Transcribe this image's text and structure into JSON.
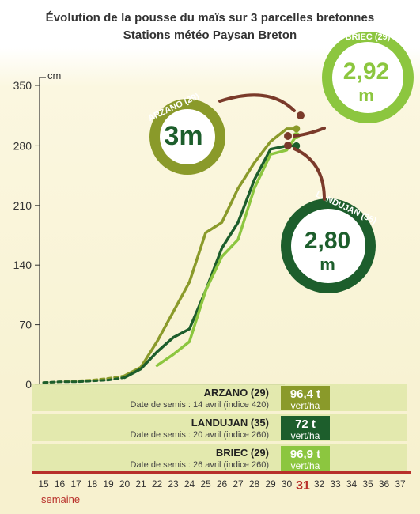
{
  "title": "Évolution de la pousse du maïs sur 3 parcelles bretonnes",
  "subtitle": "Stations météo Paysan Breton",
  "chart_data": {
    "type": "line",
    "title": "Évolution de la pousse du maïs sur 3 parcelles bretonnes",
    "subtitle": "Stations météo Paysan Breton",
    "xlabel": "semaine",
    "ylabel": "cm",
    "ylim": [
      0,
      350
    ],
    "y_ticks": [
      "0",
      "70",
      "140",
      "210",
      "280",
      "350"
    ],
    "x_ticks": [
      "15",
      "16",
      "17",
      "18",
      "19",
      "20",
      "21",
      "22",
      "23",
      "24",
      "25",
      "26",
      "27",
      "28",
      "29",
      "30",
      "31",
      "32",
      "33",
      "34",
      "35",
      "36",
      "37"
    ],
    "highlight_week": "31",
    "grid": false,
    "series": [
      {
        "name": "ARZANO (29)",
        "color": "#8a9a2a",
        "x": [
          15,
          16,
          17,
          18,
          19,
          20,
          21,
          22,
          23,
          24,
          25,
          26,
          27,
          28,
          29,
          30,
          30.6
        ],
        "y": [
          2,
          3,
          4,
          5,
          7,
          10,
          20,
          50,
          85,
          120,
          178,
          190,
          230,
          260,
          285,
          300,
          300
        ]
      },
      {
        "name": "LANDUJAN (35)",
        "color": "#1d5e2c",
        "x": [
          15,
          16,
          17,
          18,
          19,
          20,
          21,
          22,
          23,
          24,
          25,
          26,
          27,
          28,
          29,
          30,
          30.6
        ],
        "y": [
          2,
          3,
          3,
          4,
          5,
          8,
          18,
          38,
          55,
          65,
          110,
          160,
          190,
          240,
          276,
          280,
          280
        ]
      },
      {
        "name": "BRIEC (29)",
        "color": "#8cc63f",
        "x": [
          22,
          23,
          24,
          25,
          26,
          27,
          28,
          29,
          30,
          30.6
        ],
        "y": [
          22,
          35,
          50,
          110,
          150,
          170,
          230,
          270,
          275,
          292
        ]
      }
    ],
    "callouts": [
      {
        "name": "ARZANO (29)",
        "value": "3",
        "unit": "m"
      },
      {
        "name": "BRIEC (29)",
        "value": "2,92",
        "unit": "m"
      },
      {
        "name": "LANDUJAN (35)",
        "value": "2,80",
        "unit": "m"
      }
    ],
    "table": [
      {
        "name": "ARZANO",
        "dept": "(29)",
        "sowing": "Date de semis : 14 avril (indice 420)",
        "yield": "96,4",
        "unit_t": "t",
        "unit_ha": "vert/ha",
        "color": "#8a9a2a"
      },
      {
        "name": "LANDUJAN",
        "dept": "(35)",
        "sowing": "Date de semis : 20 avril (indice 260)",
        "yield": "72",
        "unit_t": "t",
        "unit_ha": "vert/ha",
        "color": "#1d5e2c"
      },
      {
        "name": "BRIEC",
        "dept": "(29)",
        "sowing": "Date de semis : 26 avril (indice 260)",
        "yield": "96,9",
        "unit_t": "t",
        "unit_ha": "vert/ha",
        "color": "#8cc63f"
      }
    ]
  }
}
